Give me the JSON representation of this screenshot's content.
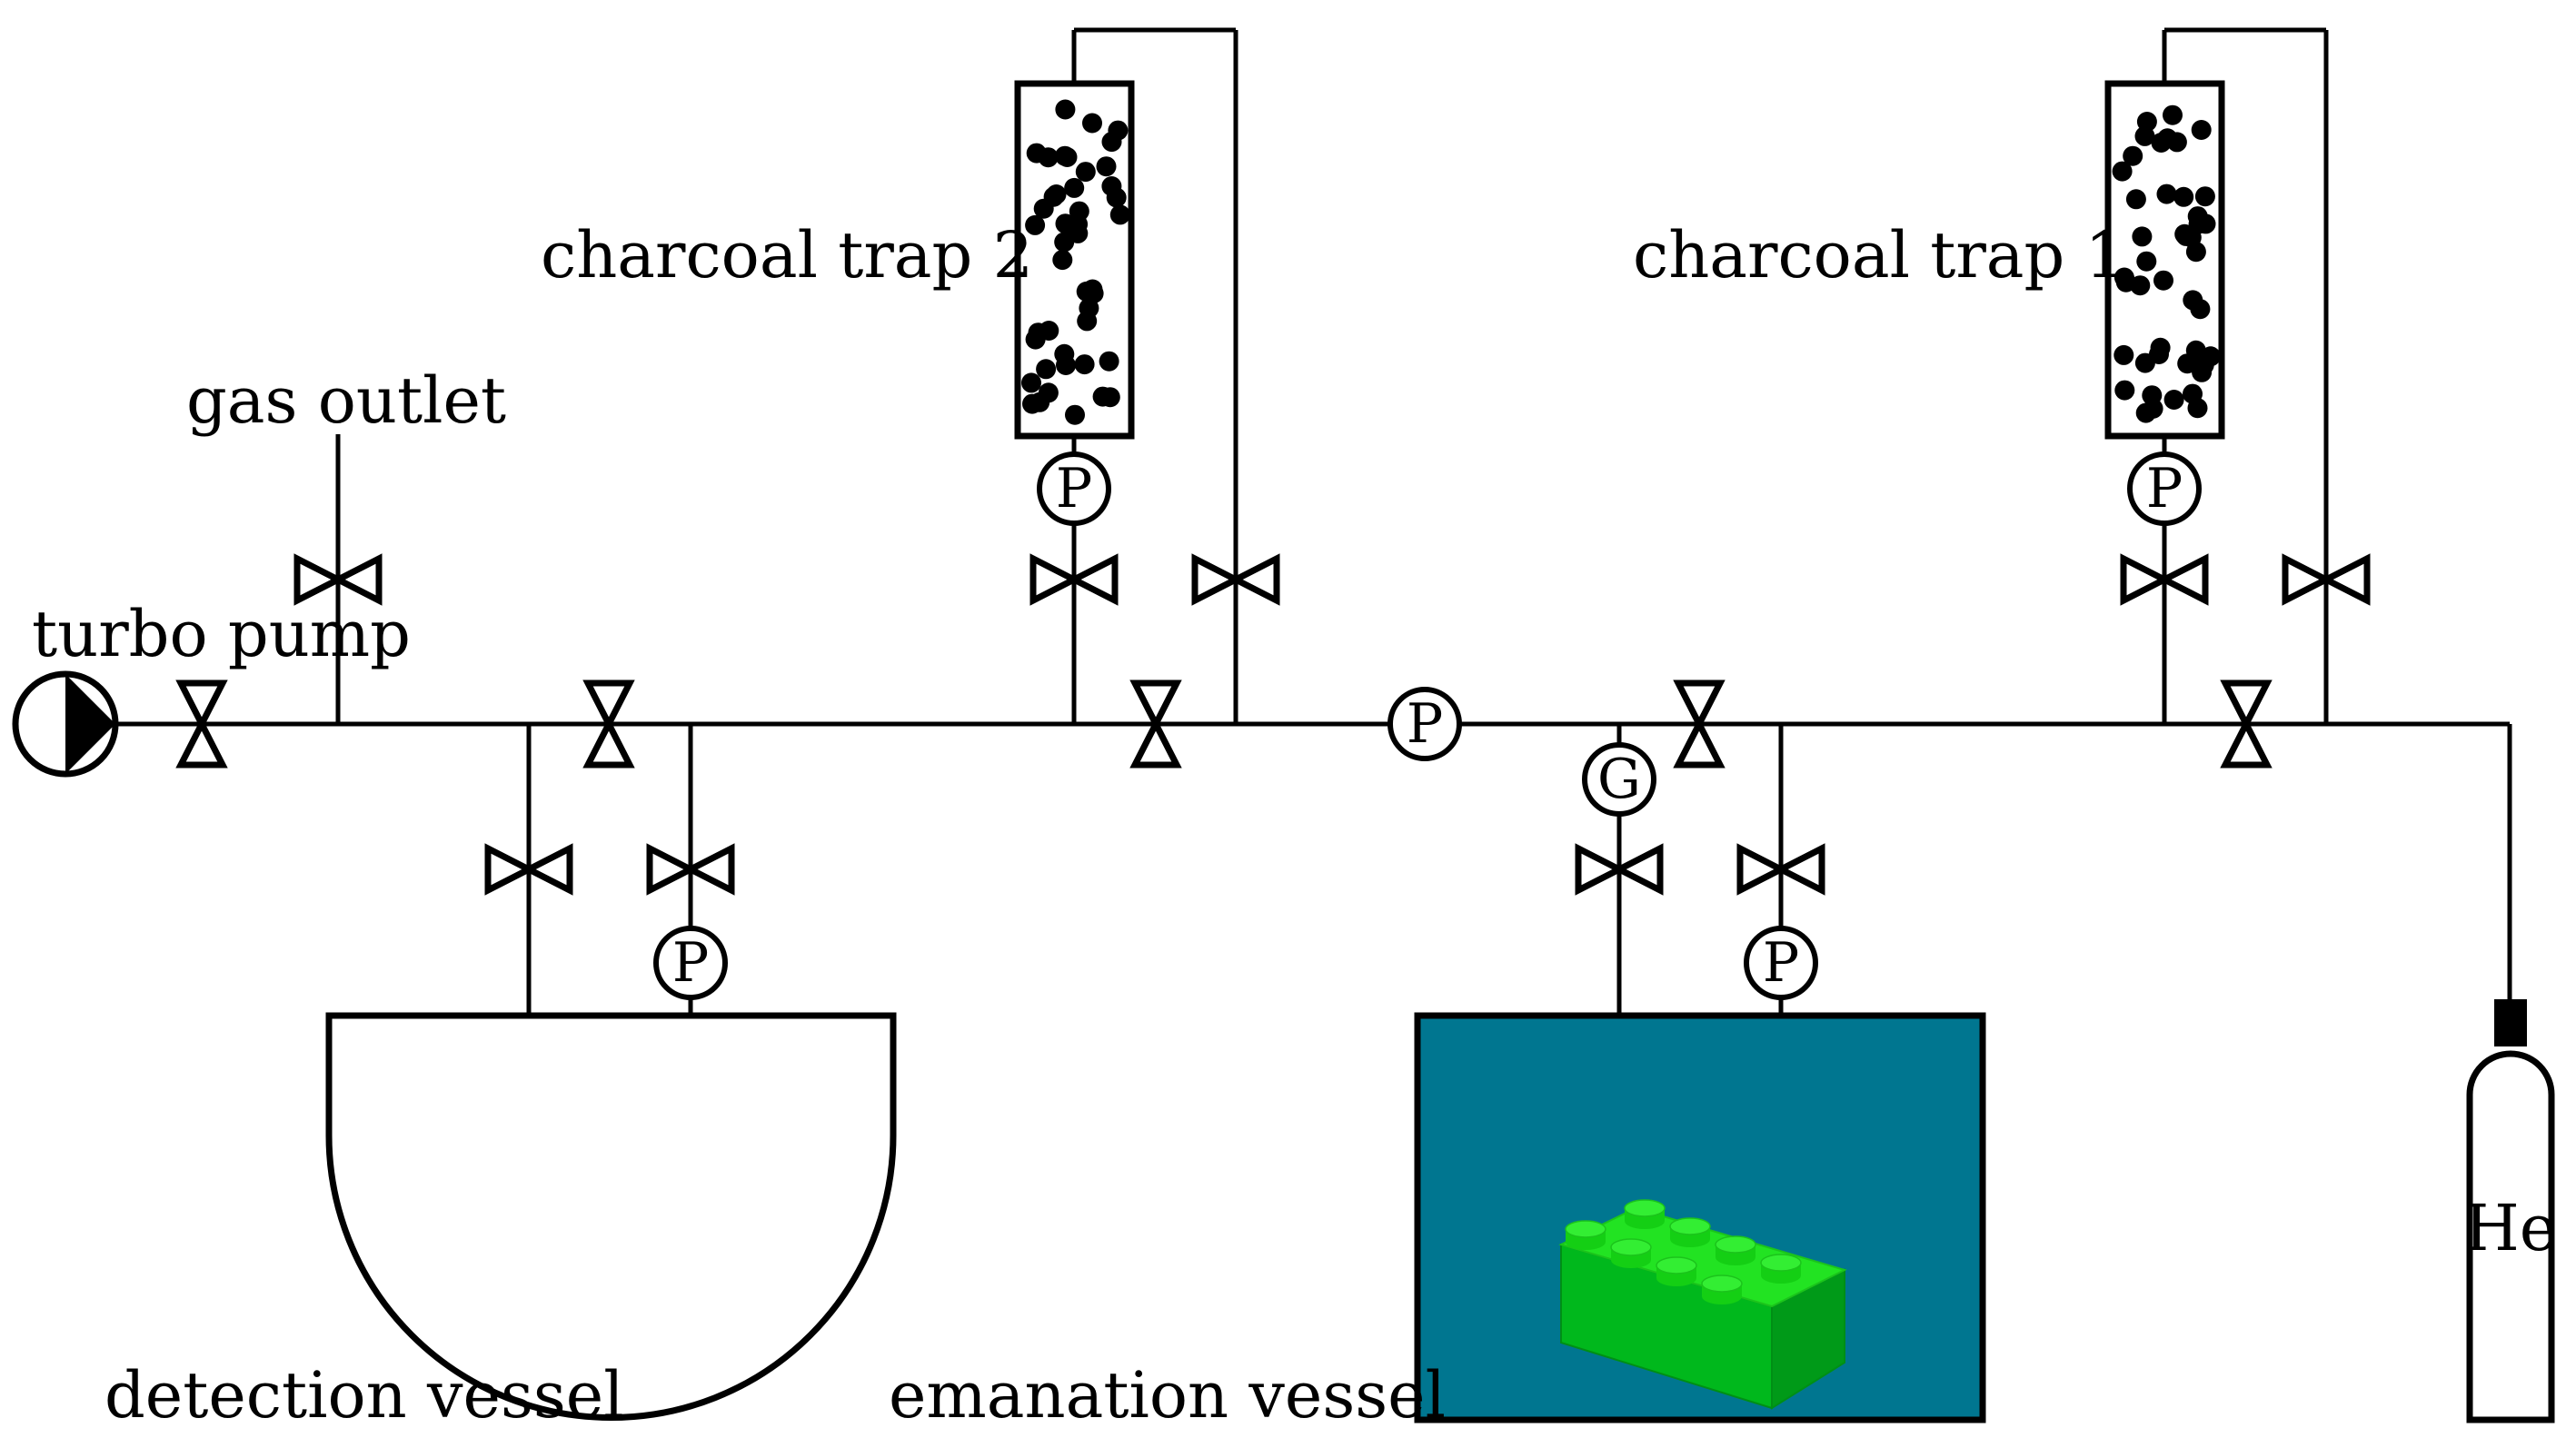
{
  "labels": {
    "turbo_pump": "turbo pump",
    "gas_outlet": "gas outlet",
    "charcoal_trap_2": "charcoal trap 2",
    "charcoal_trap_1": "charcoal trap 1",
    "detection_vessel": "detection vessel",
    "emanation_vessel": "emanation vessel",
    "helium": "He"
  },
  "gauge_labels": {
    "pressure": "P",
    "gas": "G"
  },
  "colors": {
    "line": "#000000",
    "emanation_fill": "#007690",
    "brick_top": "#22e322",
    "brick_front": "#00b81c",
    "brick_side": "#009a18"
  }
}
